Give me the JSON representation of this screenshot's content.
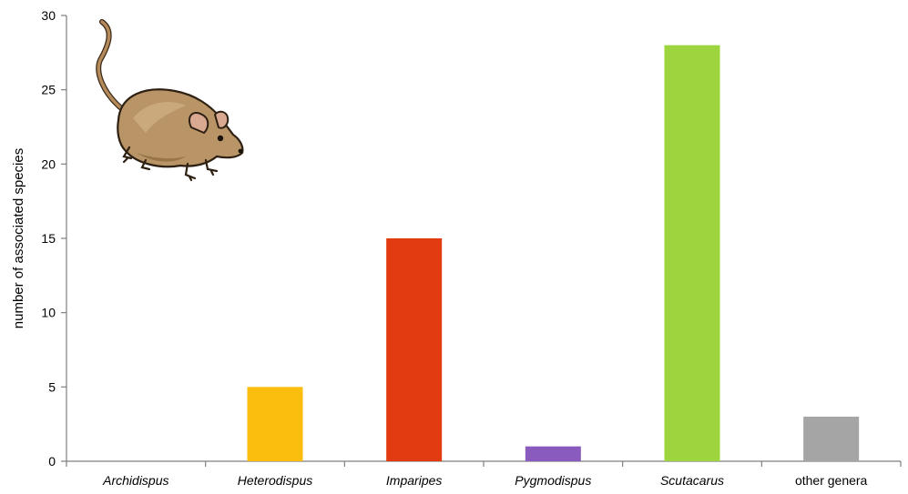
{
  "chart_data": {
    "type": "bar",
    "categories": [
      "Archidispus",
      "Heterodispus",
      "Imparipes",
      "Pygmodispus",
      "Scutacarus",
      "other genera"
    ],
    "category_italic": [
      true,
      true,
      true,
      true,
      true,
      false
    ],
    "values": [
      0,
      5,
      15,
      1,
      28,
      3
    ],
    "colors": [
      "#ffffff",
      "#fbbd0e",
      "#e23b11",
      "#8a5bbf",
      "#9ed43d",
      "#a5a5a5"
    ],
    "ylabel": "number of associated species",
    "xlabel": "",
    "ylim": [
      0,
      30
    ],
    "yticks": [
      0,
      5,
      10,
      15,
      20,
      25,
      30
    ],
    "grid": false,
    "legend": "none",
    "decoration": "mouse-illustration"
  }
}
